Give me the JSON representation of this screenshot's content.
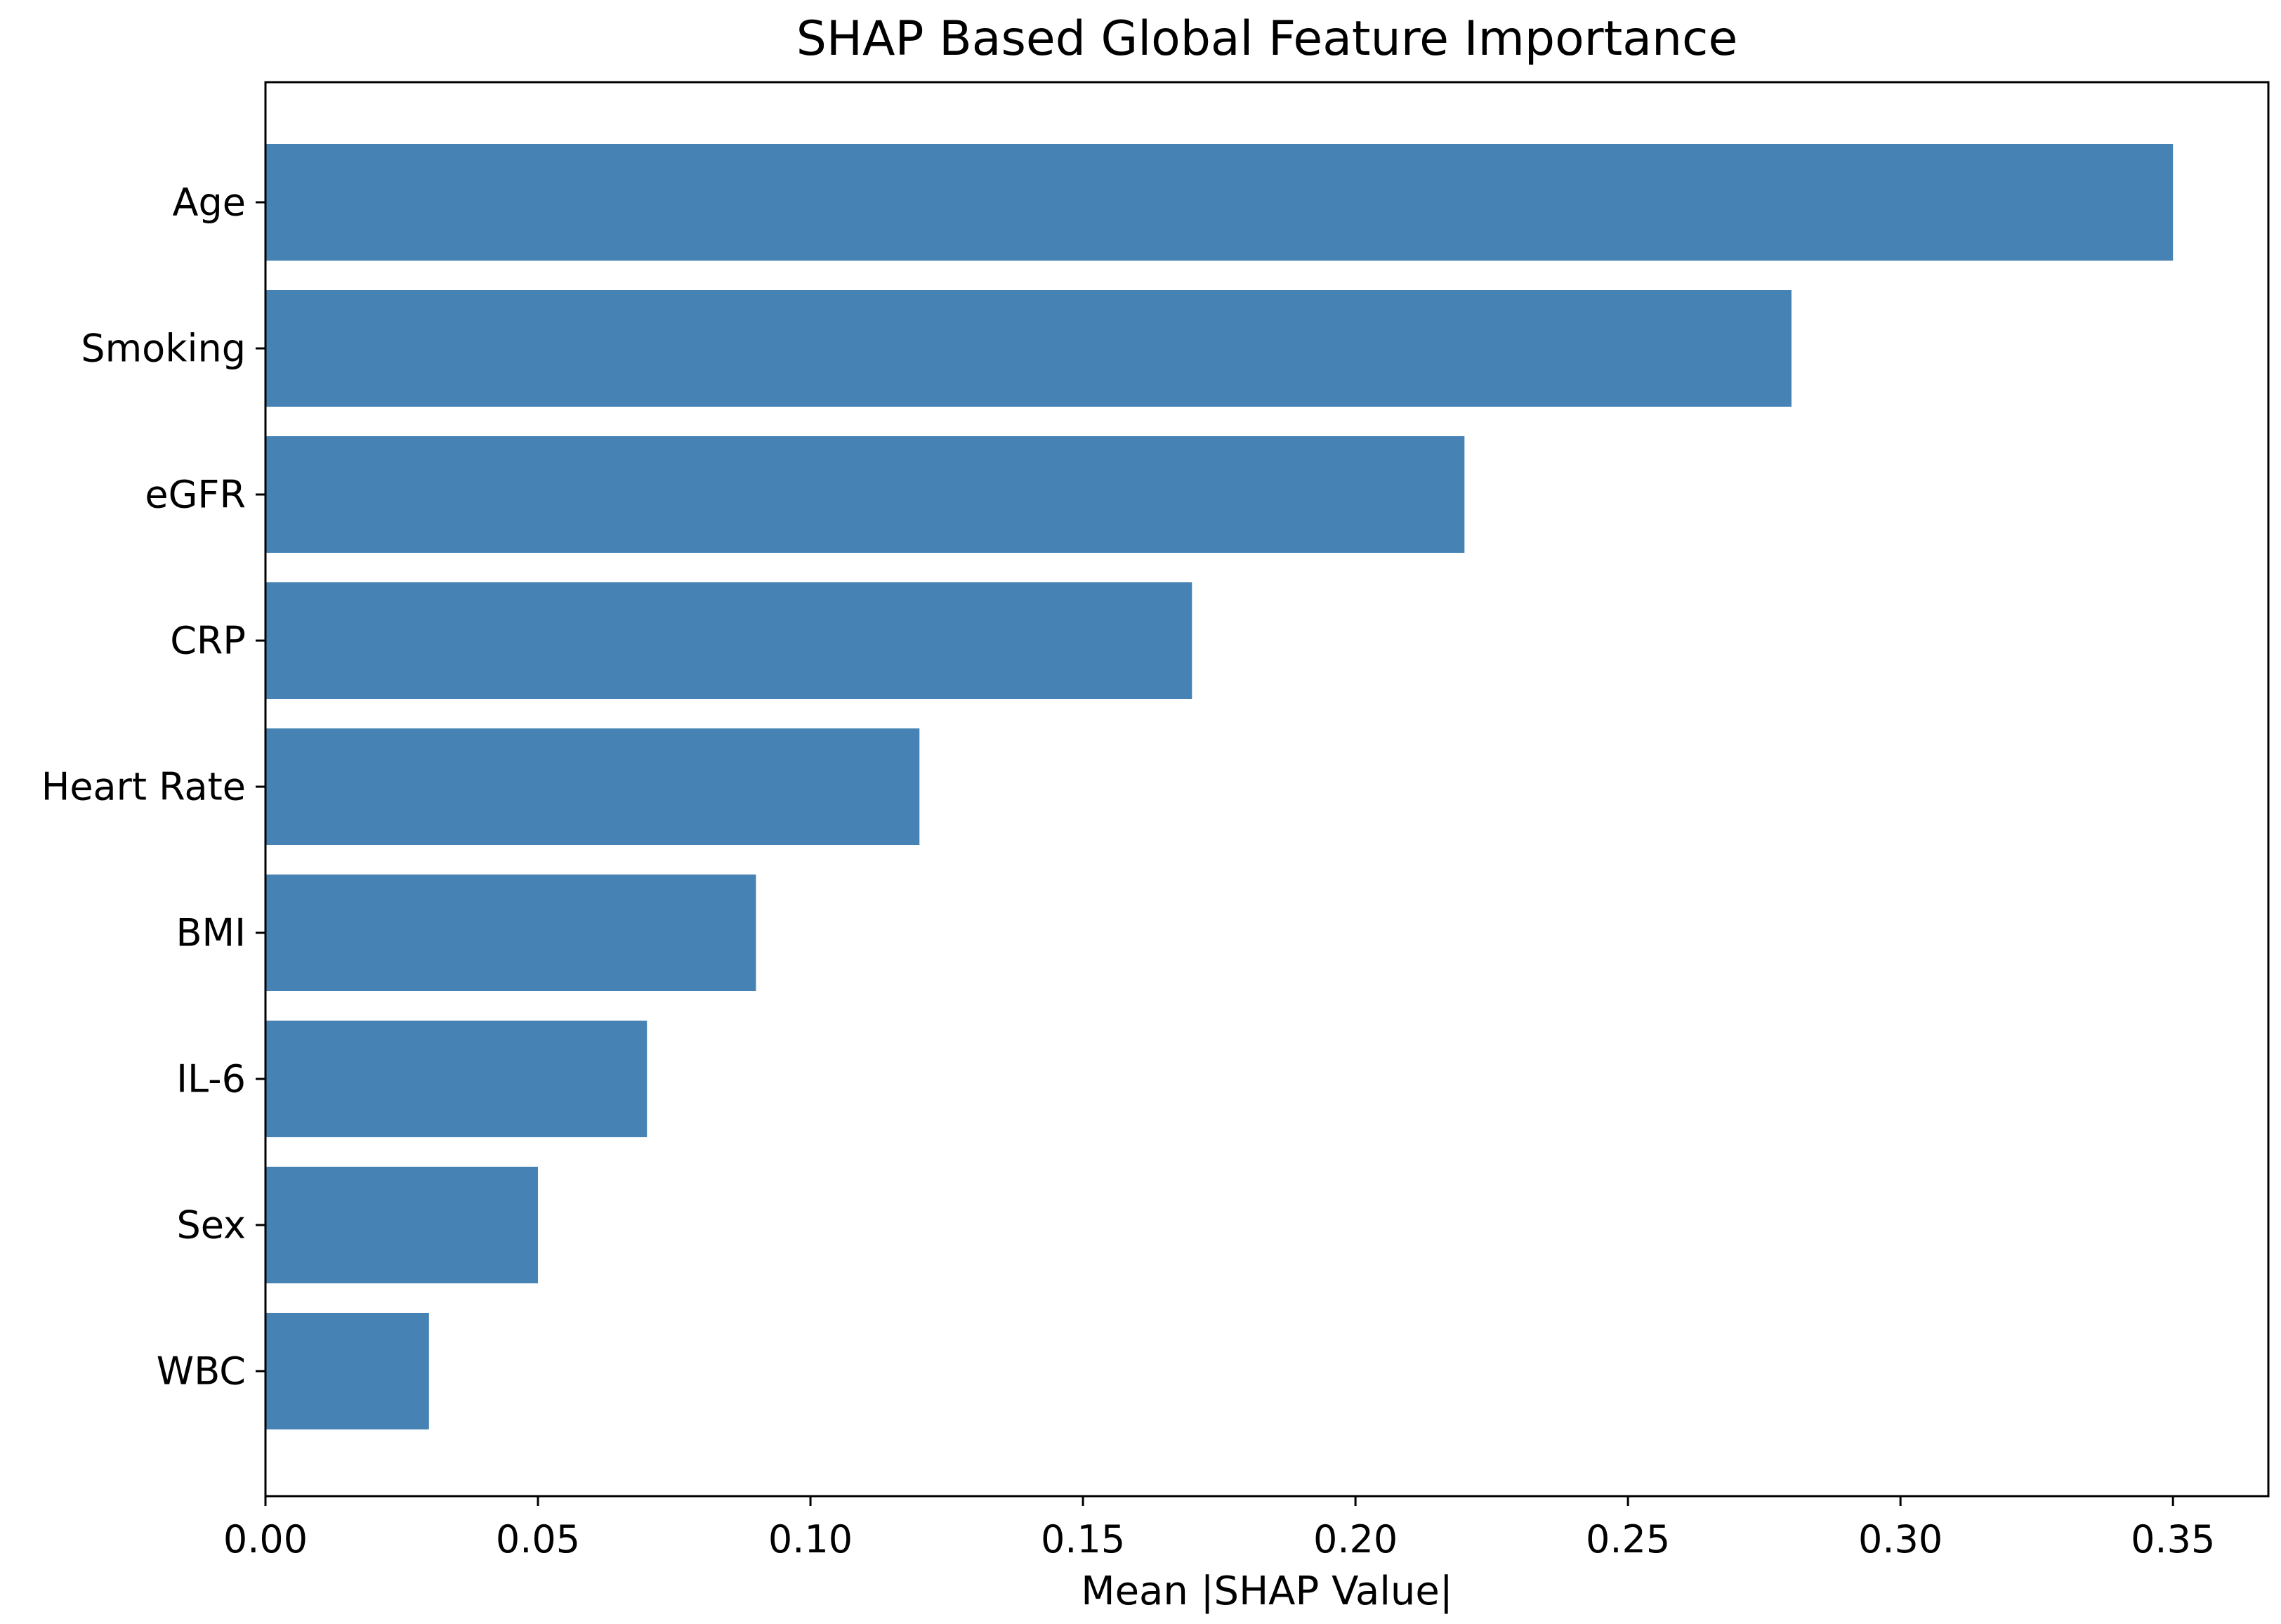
{
  "chart_data": {
    "type": "bar",
    "orientation": "horizontal",
    "title": "SHAP Based Global Feature Importance",
    "xlabel": "Mean |SHAP Value|",
    "ylabel": "",
    "categories": [
      "Age",
      "Smoking",
      "eGFR",
      "CRP",
      "Heart Rate",
      "BMI",
      "IL-6",
      "Sex",
      "WBC"
    ],
    "values": [
      0.35,
      0.28,
      0.22,
      0.17,
      0.12,
      0.09,
      0.07,
      0.05,
      0.03
    ],
    "xlim": [
      0.0,
      0.3675
    ],
    "xticks": [
      "0.00",
      "0.05",
      "0.10",
      "0.15",
      "0.20",
      "0.25",
      "0.30",
      "0.35"
    ],
    "xtick_values": [
      0.0,
      0.05,
      0.1,
      0.15,
      0.2,
      0.25,
      0.3,
      0.35
    ],
    "bar_color": "#4682b4",
    "grid": false,
    "legend": "none"
  }
}
